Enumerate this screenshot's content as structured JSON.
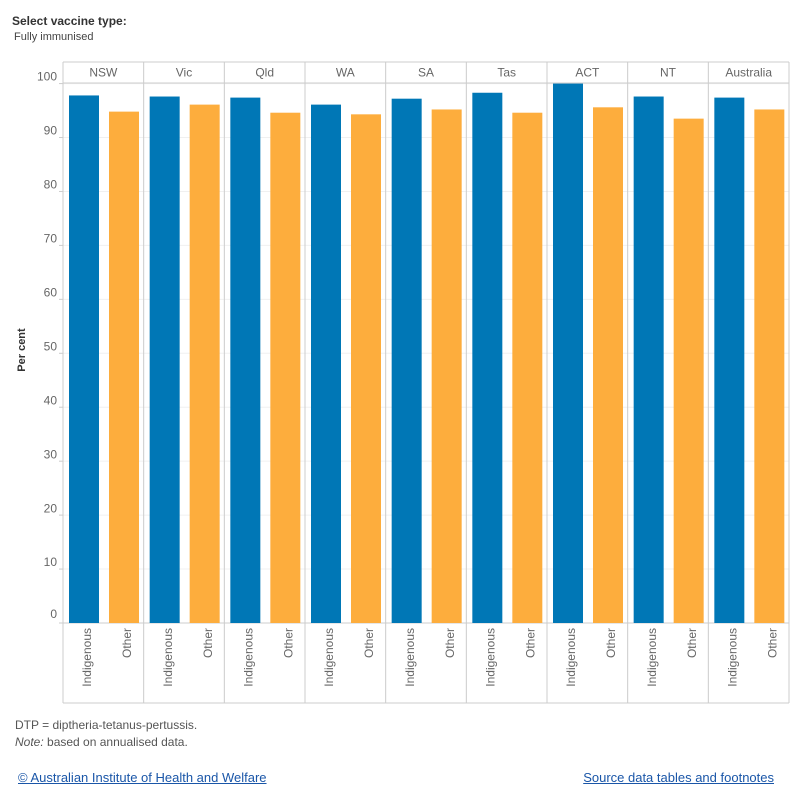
{
  "filter": {
    "label": "Select vaccine type:",
    "value": "Fully immunised"
  },
  "chart_data": {
    "type": "bar",
    "y_label": "Per cent",
    "categories": [
      "NSW",
      "Vic",
      "Qld",
      "WA",
      "SA",
      "Tas",
      "ACT",
      "NT",
      "Australia"
    ],
    "series": [
      {
        "name": "Indigenous",
        "color": "#0077b6",
        "values": [
          97.8,
          97.6,
          97.4,
          96.1,
          97.2,
          98.3,
          100,
          97.6,
          97.4
        ]
      },
      {
        "name": "Other",
        "color": "#fdad3d",
        "values": [
          94.8,
          96.1,
          94.6,
          94.3,
          95.2,
          94.6,
          95.6,
          93.5,
          95.2
        ]
      }
    ],
    "ylim": [
      0,
      104
    ],
    "yticks": [
      0,
      10,
      20,
      30,
      40,
      50,
      60,
      70,
      80,
      90,
      100
    ],
    "grid": true
  },
  "footnotes": {
    "abbrev": "DTP = diptheria-tetanus-pertussis.",
    "note_label": "Note:",
    "note_text": "based on annualised data."
  },
  "links": {
    "left": "© Australian Institute of Health and Welfare",
    "right": "Source data tables and footnotes"
  }
}
